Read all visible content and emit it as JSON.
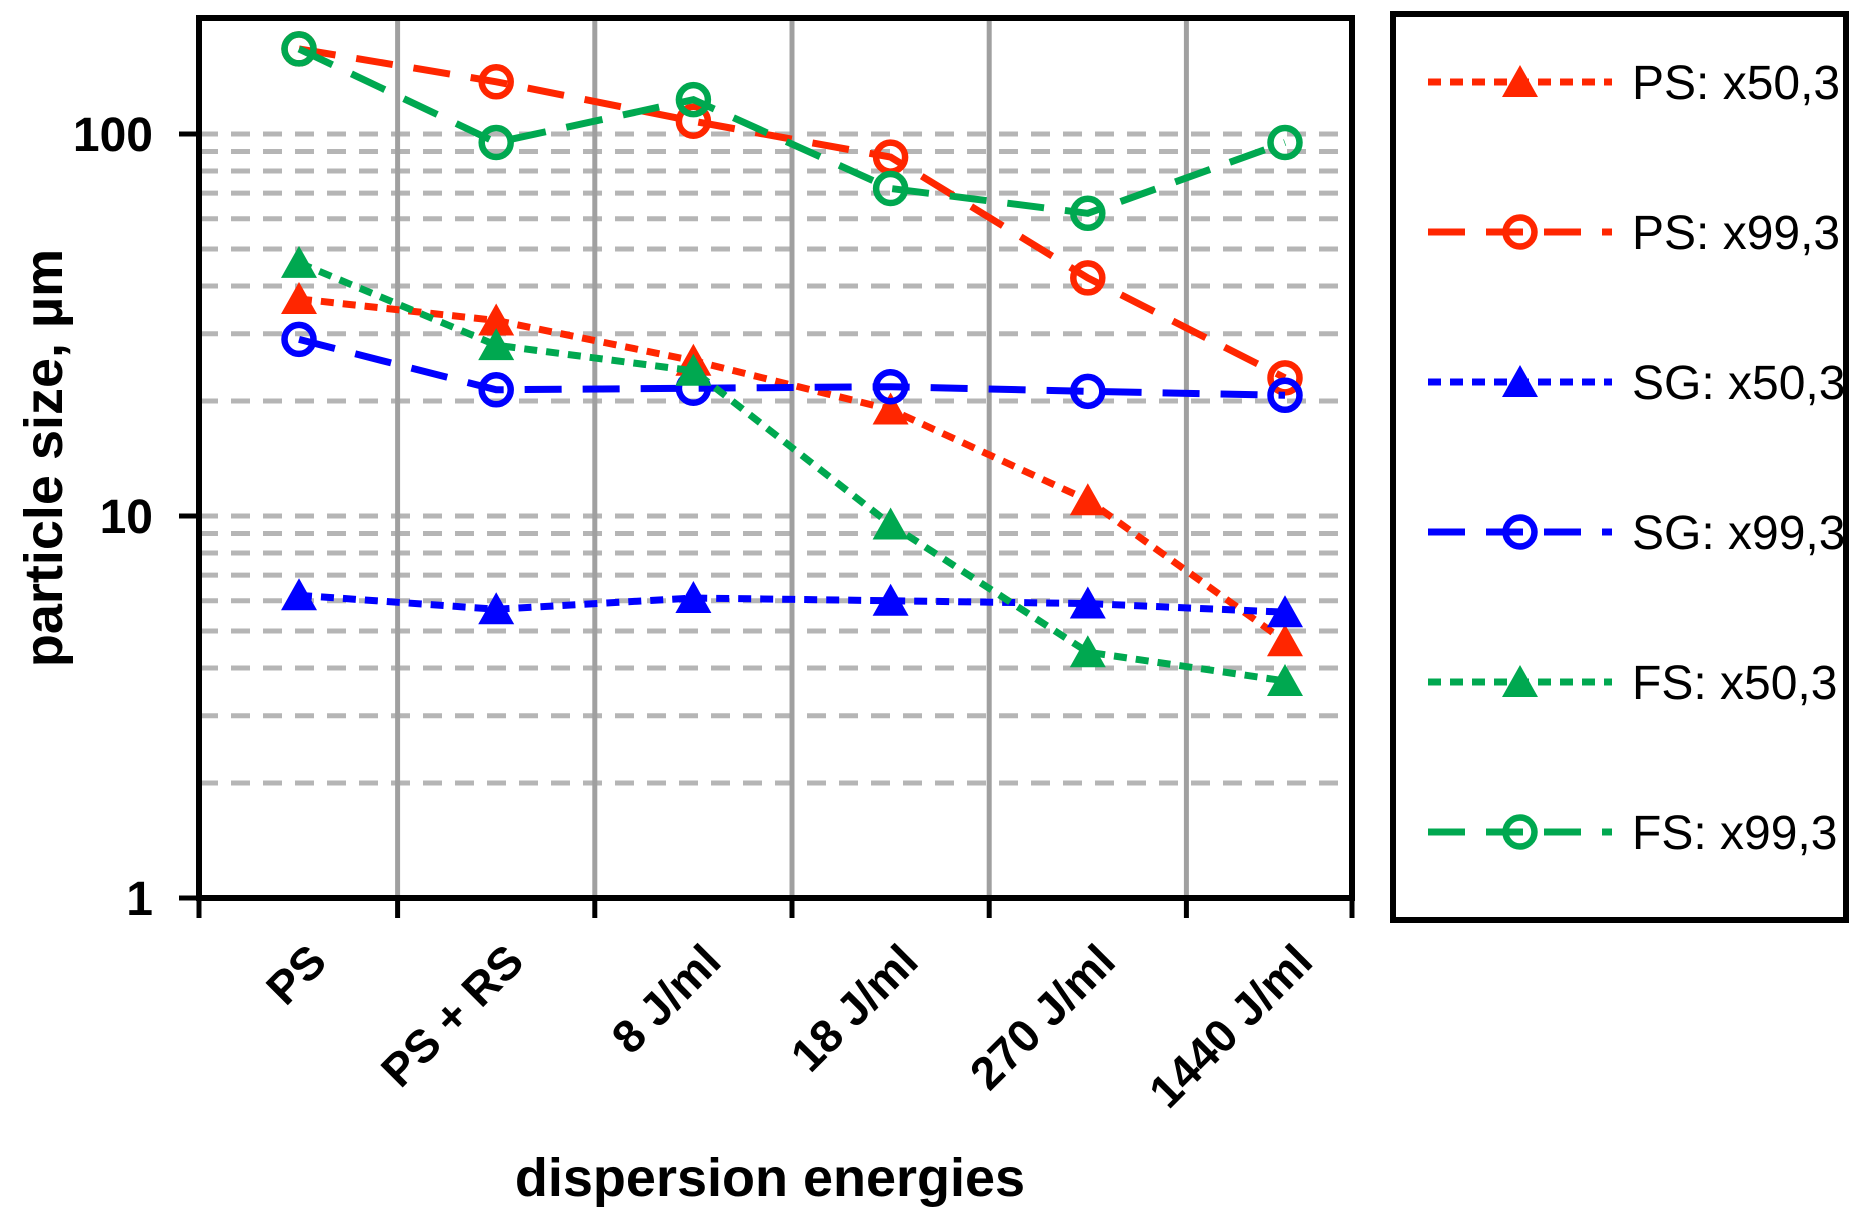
{
  "chart_data": {
    "type": "line",
    "title": "",
    "xlabel": "dispersion energies",
    "ylabel": "particle size, µm",
    "y_scale": "log",
    "ylim": [
      1,
      200
    ],
    "y_ticks": [
      "100",
      "10",
      "1"
    ],
    "y_tick_values": [
      100,
      10,
      1
    ],
    "y_minor_gridline_values": [
      2,
      3,
      4,
      5,
      6,
      7,
      8,
      9,
      10,
      20,
      30,
      40,
      50,
      60,
      70,
      80,
      90,
      100
    ],
    "grid": {
      "horizontal": "dashed-gray",
      "vertical_separators": "solid-gray"
    },
    "legend_position": "right-outside",
    "categories": [
      "PS",
      "PS + RS",
      "8 J/ml",
      "18 J/ml",
      "270 J/ml",
      "1440 J/ml"
    ],
    "series": [
      {
        "name": "PS: x50,3",
        "color": "#ff2600",
        "marker": "filled-triangle",
        "dash": "dotted",
        "values": [
          37,
          32.5,
          25.5,
          19,
          11,
          4.7
        ]
      },
      {
        "name": "PS: x99,3",
        "color": "#ff2600",
        "marker": "open-circle",
        "dash": "long-dash",
        "values": [
          167,
          137,
          108,
          87,
          42,
          23
        ]
      },
      {
        "name": "SG: x50,3",
        "color": "#0000ff",
        "marker": "filled-triangle",
        "dash": "dotted",
        "values": [
          6.2,
          5.7,
          6.1,
          6.0,
          5.9,
          5.6
        ]
      },
      {
        "name": "SG: x99,3",
        "color": "#0000ff",
        "marker": "open-circle",
        "dash": "long-dash",
        "values": [
          29,
          21.4,
          21.6,
          21.8,
          21.2,
          20.7
        ]
      },
      {
        "name": "FS: x50,3",
        "color": "#00a850",
        "marker": "filled-triangle",
        "dash": "dotted",
        "values": [
          46,
          28,
          24,
          9.5,
          4.4,
          3.7
        ]
      },
      {
        "name": "FS: x99,3",
        "color": "#00a850",
        "marker": "open-circle",
        "dash": "long-dash",
        "values": [
          167,
          95,
          123,
          72,
          62,
          95
        ]
      }
    ],
    "colors": {
      "axis": "#000000",
      "gridline": "#b5b5b5",
      "separator": "#a0a0a0",
      "ps_red": "#ff2600",
      "sg_blue": "#0000ff",
      "fs_green": "#00a850"
    }
  }
}
